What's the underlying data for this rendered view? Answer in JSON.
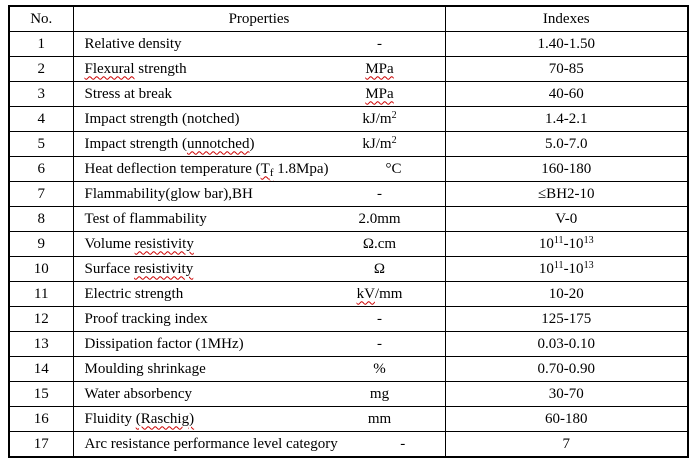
{
  "table": {
    "headers": {
      "no": "No.",
      "properties": "Properties",
      "indexes": "Indexes"
    },
    "spellcheck_color": "#cc0000",
    "border_color": "#000000",
    "rows": [
      {
        "no": "1",
        "name": [
          {
            "t": "Relative density"
          }
        ],
        "unit": [
          {
            "t": "-"
          }
        ],
        "index": [
          {
            "t": "1.40-1.50"
          }
        ]
      },
      {
        "no": "2",
        "name": [
          {
            "t": "Flexural",
            "sp": true
          },
          {
            "t": " strength"
          }
        ],
        "unit": [
          {
            "t": "MPa",
            "sp": true
          }
        ],
        "index": [
          {
            "t": "70-85"
          }
        ]
      },
      {
        "no": "3",
        "name": [
          {
            "t": "Stress at break"
          }
        ],
        "unit": [
          {
            "t": "MPa",
            "sp": true
          }
        ],
        "index": [
          {
            "t": "40-60"
          }
        ]
      },
      {
        "no": "4",
        "name": [
          {
            "t": "Impact strength (notched)"
          }
        ],
        "unit": [
          {
            "t": "kJ/m"
          },
          {
            "t": "2",
            "sup": true
          }
        ],
        "index": [
          {
            "t": "1.4-2.1"
          }
        ]
      },
      {
        "no": "5",
        "name": [
          {
            "t": "Impact strength ("
          },
          {
            "t": "unnotched",
            "sp": true
          },
          {
            "t": ")"
          }
        ],
        "unit": [
          {
            "t": "kJ/m"
          },
          {
            "t": "2",
            "sup": true
          }
        ],
        "index": [
          {
            "t": "5.0-7.0"
          }
        ]
      },
      {
        "no": "6",
        "name": [
          {
            "t": "Heat deflection temperature ("
          },
          {
            "t": "T",
            "sp": true
          },
          {
            "t": "f",
            "sub": true,
            "sp": true
          },
          {
            "t": " 1.8Mpa)"
          }
        ],
        "unit": [
          {
            "t": "°C"
          }
        ],
        "index": [
          {
            "t": "160-180"
          }
        ]
      },
      {
        "no": "7",
        "name": [
          {
            "t": "Flammability(glow bar),BH"
          }
        ],
        "unit": [
          {
            "t": "-"
          }
        ],
        "index": [
          {
            "t": "≤BH2-10"
          }
        ]
      },
      {
        "no": "8",
        "name": [
          {
            "t": "Test of flammability"
          }
        ],
        "unit": [
          {
            "t": "2.0mm"
          }
        ],
        "index": [
          {
            "t": "V-0"
          }
        ]
      },
      {
        "no": "9",
        "name": [
          {
            "t": "Volume "
          },
          {
            "t": "resistivity",
            "sp": true
          }
        ],
        "unit": [
          {
            "t": "Ω.cm"
          }
        ],
        "index": [
          {
            "t": "10"
          },
          {
            "t": "11",
            "sup": true
          },
          {
            "t": "-10"
          },
          {
            "t": "13",
            "sup": true
          }
        ]
      },
      {
        "no": "10",
        "name": [
          {
            "t": "Surface "
          },
          {
            "t": "resistivity",
            "sp": true
          }
        ],
        "unit": [
          {
            "t": "Ω"
          }
        ],
        "index": [
          {
            "t": "10"
          },
          {
            "t": "11",
            "sup": true
          },
          {
            "t": "-10"
          },
          {
            "t": "13",
            "sup": true
          }
        ]
      },
      {
        "no": "11",
        "name": [
          {
            "t": "Electric strength"
          }
        ],
        "unit": [
          {
            "t": "kV",
            "sp": true
          },
          {
            "t": "/mm"
          }
        ],
        "index": [
          {
            "t": "10-20"
          }
        ]
      },
      {
        "no": "12",
        "name": [
          {
            "t": "Proof tracking index"
          }
        ],
        "unit": [
          {
            "t": "-"
          }
        ],
        "index": [
          {
            "t": "125-175"
          }
        ]
      },
      {
        "no": "13",
        "name": [
          {
            "t": "Dissipation factor (1MHz)"
          }
        ],
        "unit": [
          {
            "t": "-"
          }
        ],
        "index": [
          {
            "t": "0.03-0.10"
          }
        ]
      },
      {
        "no": "14",
        "name": [
          {
            "t": "Moulding shrinkage"
          }
        ],
        "unit": [
          {
            "t": "%"
          }
        ],
        "index": [
          {
            "t": "0.70-0.90"
          }
        ]
      },
      {
        "no": "15",
        "name": [
          {
            "t": "Water absorbency"
          }
        ],
        "unit": [
          {
            "t": "mg"
          }
        ],
        "index": [
          {
            "t": "30-70"
          }
        ]
      },
      {
        "no": "16",
        "name": [
          {
            "t": "Fluidity "
          },
          {
            "t": "(Raschig)",
            "sp": true
          }
        ],
        "unit": [
          {
            "t": "mm"
          }
        ],
        "index": [
          {
            "t": "60-180"
          }
        ]
      },
      {
        "no": "17",
        "name": [
          {
            "t": "Arc resistance performance level category"
          }
        ],
        "unit": [
          {
            "t": "-"
          }
        ],
        "index": [
          {
            "t": "7"
          }
        ]
      }
    ]
  }
}
